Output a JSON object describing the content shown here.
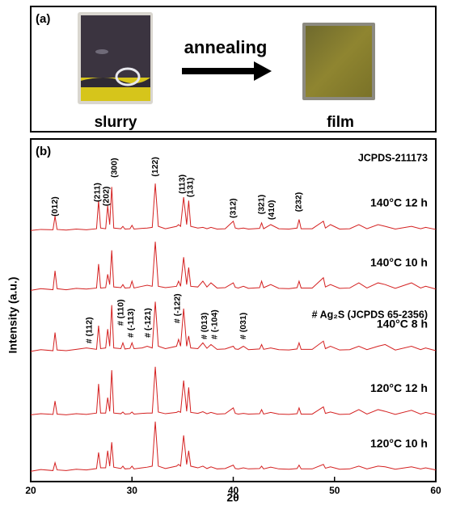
{
  "panel_a": {
    "label": "(a)",
    "left_caption": "slurry",
    "arrow_label": "annealing",
    "right_caption": "film"
  },
  "chart_data": {
    "type": "line",
    "panel_label": "(b)",
    "x_label": "2θ",
    "y_label": "Intensity (a.u.)",
    "xlim": [
      20,
      60
    ],
    "xticks": [
      20,
      30,
      40,
      50,
      60
    ],
    "ylim": [
      0,
      100
    ],
    "x": [
      20,
      21,
      22.2,
      22.4,
      22.6,
      23.5,
      24.5,
      25.5,
      26.5,
      26.7,
      26.9,
      27.4,
      27.6,
      27.8,
      28.0,
      28.2,
      28.9,
      29.1,
      29.3,
      29.8,
      30.0,
      30.2,
      31.0,
      31.5,
      32.0,
      32.3,
      32.6,
      33.3,
      34.4,
      34.6,
      34.8,
      35.1,
      35.4,
      35.6,
      35.8,
      36.5,
      37.0,
      37.4,
      37.8,
      38.4,
      39.2,
      40.0,
      40.2,
      40.5,
      41.0,
      41.5,
      42.6,
      42.8,
      43.0,
      43.7,
      44.5,
      45.5,
      46.3,
      46.5,
      46.7,
      47.8,
      48.9,
      49.1,
      49.6,
      50.5,
      51.5,
      52.4,
      53.2,
      54.3,
      55.0,
      56.0,
      57.6,
      58.5,
      59.0,
      60
    ],
    "series": [
      {
        "name": "140°C 12 h",
        "color": "#d42020",
        "values": [
          73.3,
          73.6,
          73.5,
          77.5,
          73.6,
          73.4,
          73.7,
          73.5,
          73.8,
          82,
          74,
          73.8,
          80.5,
          75,
          86,
          74,
          73.8,
          74.5,
          73.7,
          73.8,
          74.8,
          73.7,
          73.9,
          74,
          74.2,
          87,
          74.5,
          73.8,
          74.5,
          75,
          74.5,
          83,
          75,
          82,
          74.5,
          74,
          74.2,
          73.8,
          74.2,
          73.7,
          73.8,
          76,
          74,
          73.8,
          74,
          73.7,
          73.9,
          75.5,
          73.8,
          75,
          73.8,
          73.7,
          74,
          76.5,
          73.8,
          73.8,
          76,
          74,
          75,
          73.7,
          73.8,
          75,
          73.8,
          75,
          74.5,
          73.7,
          74.5,
          73.8,
          74.2,
          73.6
        ]
      },
      {
        "name": "140°C 10 h",
        "color": "#d42020",
        "values": [
          55.8,
          56.3,
          56,
          61.5,
          56.3,
          56,
          56.4,
          56.2,
          56.5,
          63.5,
          56.5,
          56.6,
          60.5,
          57.5,
          67.5,
          56.8,
          56.6,
          57.5,
          56.5,
          56.6,
          58.5,
          56.5,
          57,
          57.3,
          57,
          70,
          57,
          56.6,
          57,
          58.5,
          57,
          65.5,
          57.5,
          62.5,
          57,
          56.8,
          58.5,
          56.8,
          58,
          56.5,
          56.6,
          58,
          56.7,
          56.5,
          57,
          56.4,
          56.6,
          58.5,
          56.6,
          57.5,
          56.4,
          56.3,
          56.6,
          58.5,
          56.5,
          56.5,
          59.5,
          56.8,
          57.5,
          56.4,
          56.5,
          58,
          56.5,
          58,
          57.5,
          56.4,
          58,
          56.5,
          57,
          56.2
        ]
      },
      {
        "name": "140°C 8 h",
        "color": "#d42020",
        "values": [
          38,
          38.5,
          38.2,
          43.5,
          38.4,
          38.2,
          38.6,
          39,
          38.6,
          45.5,
          38.8,
          39,
          44.5,
          39.5,
          51.5,
          39,
          38.8,
          40.5,
          38.7,
          38.9,
          40.5,
          38.8,
          39,
          39.5,
          39,
          52.5,
          39.5,
          38.8,
          39.5,
          41.5,
          39.5,
          50.5,
          39.5,
          42.5,
          39,
          38.8,
          40.5,
          38.9,
          40,
          38.6,
          38.7,
          39.5,
          38.7,
          38.6,
          39.5,
          38.5,
          38.7,
          40,
          38.6,
          39,
          38.5,
          38.4,
          38.7,
          40.5,
          38.6,
          38.6,
          41,
          38.8,
          39.5,
          38.4,
          38.5,
          39.5,
          38.5,
          39.5,
          40,
          38.4,
          39.5,
          38.5,
          39,
          38.2
        ]
      },
      {
        "name": "120°C 12 h",
        "color": "#d42020",
        "values": [
          19.5,
          19.8,
          19.6,
          23.5,
          19.7,
          19.5,
          19.8,
          19.6,
          20,
          28.5,
          20,
          20,
          24.5,
          20.5,
          32.5,
          20,
          19.8,
          20.3,
          19.7,
          19.8,
          20.3,
          19.7,
          19.9,
          20,
          20,
          33.5,
          20.3,
          19.8,
          20.2,
          20.5,
          20.2,
          29.5,
          20.5,
          27.5,
          20.2,
          19.9,
          20.4,
          19.8,
          20.2,
          19.7,
          19.8,
          21.5,
          19.9,
          19.7,
          19.9,
          19.7,
          19.8,
          21,
          19.7,
          20.2,
          19.7,
          19.6,
          19.8,
          21.5,
          19.7,
          19.7,
          21.8,
          19.9,
          20.3,
          19.6,
          19.7,
          21,
          19.7,
          21,
          20.5,
          19.6,
          20.8,
          19.7,
          20.2,
          19.5
        ]
      },
      {
        "name": "120°C 10 h",
        "color": "#d42020",
        "values": [
          3,
          3.5,
          3.2,
          5.5,
          3.4,
          3.2,
          3.6,
          3.4,
          3.8,
          8.5,
          4,
          4,
          9,
          4.5,
          11.5,
          4.2,
          3.8,
          4.5,
          3.7,
          3.8,
          4.5,
          3.7,
          4,
          4.2,
          4.5,
          17.5,
          4.5,
          3.8,
          4.5,
          5,
          4.5,
          13.5,
          5,
          9,
          4.5,
          4,
          4.5,
          3.8,
          4.3,
          3.7,
          3.8,
          4.8,
          3.8,
          3.7,
          4,
          3.7,
          3.8,
          4.5,
          3.7,
          4.2,
          3.7,
          3.6,
          3.8,
          4.8,
          3.7,
          3.7,
          5,
          3.9,
          4.3,
          3.6,
          3.7,
          4.5,
          3.7,
          4.5,
          4.3,
          3.6,
          4.3,
          3.7,
          4,
          3.4
        ]
      }
    ],
    "reference_labels": [
      "JCPDS-211173",
      "# Ag₂S (JCPDS 65-2356)"
    ],
    "annotations": [
      {
        "text": "(012)",
        "x": 22.4,
        "y": 77.4
      },
      {
        "text": "(211)",
        "x": 26.6,
        "y": 81.6
      },
      {
        "text": "(202)",
        "x": 27.5,
        "y": 80.4
      },
      {
        "text": "(300)",
        "x": 28.3,
        "y": 88.7
      },
      {
        "text": "(122)",
        "x": 32.3,
        "y": 89
      },
      {
        "text": "(113)",
        "x": 35.0,
        "y": 84
      },
      {
        "text": "(131)",
        "x": 35.8,
        "y": 83
      },
      {
        "text": "(312)",
        "x": 40.0,
        "y": 76.9
      },
      {
        "text": "(321)",
        "x": 42.8,
        "y": 78
      },
      {
        "text": "(410)",
        "x": 43.8,
        "y": 76.4
      },
      {
        "text": "(232)",
        "x": 46.5,
        "y": 78.7
      },
      {
        "text": "# (112)",
        "x": 25.8,
        "y": 40.3
      },
      {
        "text": "# (110)",
        "x": 28.9,
        "y": 45.5
      },
      {
        "text": "# (-113)",
        "x": 29.9,
        "y": 42
      },
      {
        "text": "# (-121)",
        "x": 31.6,
        "y": 42
      },
      {
        "text": "# (-122)",
        "x": 34.5,
        "y": 46.2
      },
      {
        "text": "# (013)",
        "x": 37.2,
        "y": 41.5
      },
      {
        "text": "# (-104)",
        "x": 38.2,
        "y": 41.5
      },
      {
        "text": "# (031)",
        "x": 41.0,
        "y": 41.5
      }
    ]
  }
}
